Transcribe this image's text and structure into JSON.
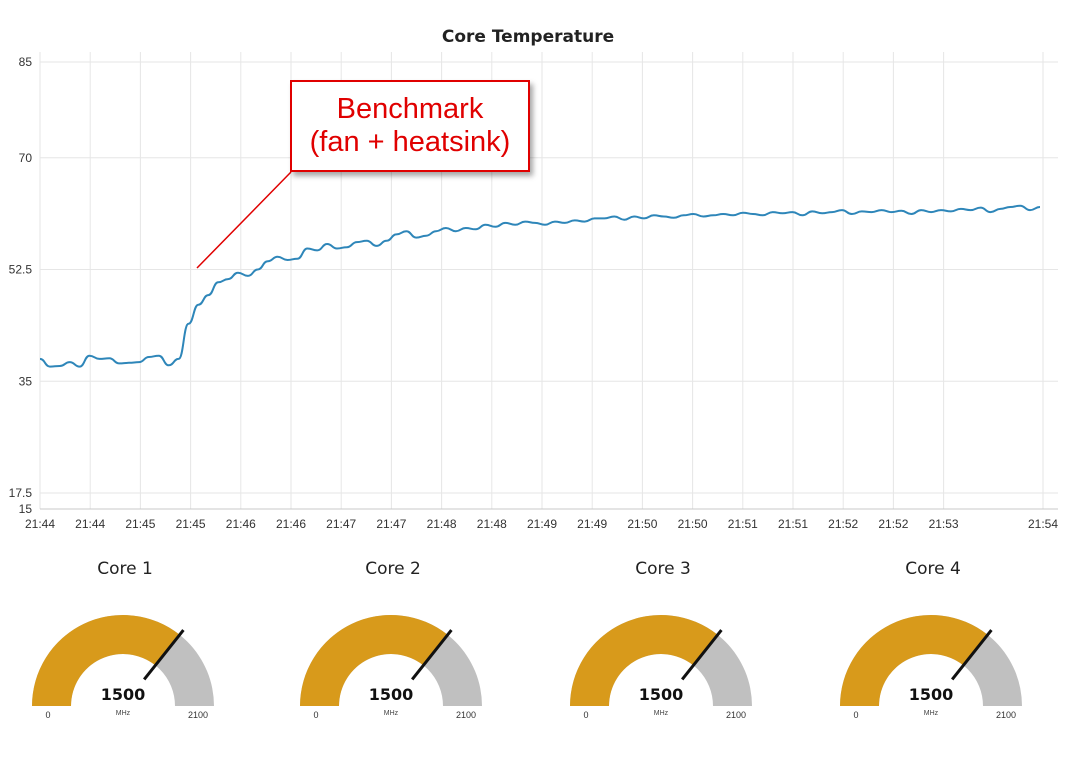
{
  "chart_data": {
    "type": "line",
    "title": "Core Temperature",
    "x_tick_labels": [
      "21:44",
      "21:44",
      "21:45",
      "21:45",
      "21:46",
      "21:46",
      "21:47",
      "21:47",
      "21:48",
      "21:48",
      "21:49",
      "21:49",
      "21:50",
      "21:50",
      "21:51",
      "21:51",
      "21:52",
      "21:52",
      "21:53",
      "21:54"
    ],
    "y_ticks": [
      15,
      17.5,
      35,
      52.5,
      70,
      85
    ],
    "ylim": [
      15,
      85
    ],
    "grid": true,
    "series": [
      {
        "color": "#2e86b9",
        "values": [
          38.5,
          37.3,
          37.4,
          38.0,
          37.3,
          39.0,
          38.5,
          38.6,
          37.8,
          37.9,
          38.0,
          38.8,
          39.0,
          37.5,
          38.5,
          44.0,
          47.0,
          48.5,
          50.5,
          51.0,
          52.0,
          51.5,
          52.5,
          53.8,
          54.5,
          54.0,
          54.2,
          55.8,
          55.5,
          56.5,
          55.8,
          56.0,
          56.8,
          57.0,
          56.2,
          57.0,
          58.0,
          58.5,
          57.5,
          57.8,
          58.5,
          59.0,
          58.5,
          59.0,
          58.8,
          59.5,
          59.2,
          59.8,
          59.5,
          60.0,
          59.8,
          59.5,
          60.0,
          59.8,
          60.2,
          60.0,
          60.5,
          60.5,
          60.8,
          60.3,
          60.8,
          60.5,
          61.0,
          60.8,
          60.6,
          61.0,
          61.2,
          60.8,
          61.0,
          61.2,
          61.0,
          61.4,
          61.2,
          61.0,
          61.5,
          61.3,
          61.5,
          61.0,
          61.6,
          61.3,
          61.5,
          61.8,
          61.2,
          61.6,
          61.5,
          61.8,
          61.5,
          61.7,
          61.2,
          61.8,
          61.5,
          61.8,
          61.6,
          62.0,
          61.8,
          62.2,
          61.5,
          62.0,
          62.3,
          62.5,
          61.8,
          62.3
        ]
      }
    ]
  },
  "annotation": {
    "line1": "Benchmark",
    "line2": "(fan + heatsink)",
    "color": "#e00000"
  },
  "gauges": [
    {
      "title": "Core 1",
      "value": "1500",
      "unit": "MHz",
      "min": "0",
      "max": "2100",
      "level": 0.714
    },
    {
      "title": "Core 2",
      "value": "1500",
      "unit": "MHz",
      "min": "0",
      "max": "2100",
      "level": 0.714
    },
    {
      "title": "Core 3",
      "value": "1500",
      "unit": "MHz",
      "min": "0",
      "max": "2100",
      "level": 0.714
    },
    {
      "title": "Core 4",
      "value": "1500",
      "unit": "MHz",
      "min": "0",
      "max": "2100",
      "level": 0.714
    }
  ],
  "colors": {
    "gauge_fill": "#d89a1b",
    "gauge_track": "#c0c0c0",
    "needle": "#111111",
    "line": "#2e86b9"
  }
}
